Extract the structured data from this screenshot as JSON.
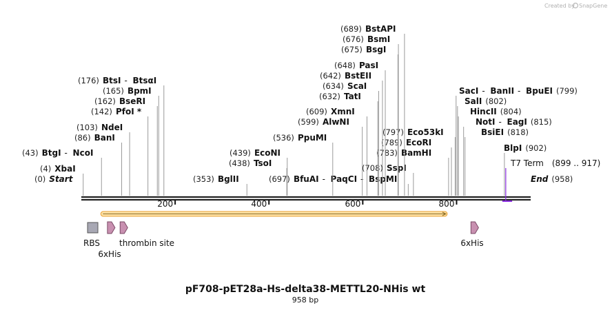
{
  "credit": {
    "prefix": "Created by",
    "brand": "SnapGene"
  },
  "title": "pF708-pET28a-Hs-delta38-METTL20-NHis wt",
  "subtitle": "958 bp",
  "map": {
    "length": 958,
    "ticks": [
      "200",
      "400",
      "600",
      "800"
    ]
  },
  "colors": {
    "backbone": "#222222",
    "orf_fill": "#ffe3a8",
    "orf_stroke": "#e8a030",
    "orf_arrow": "#8a6a20",
    "terminator": "#8a2be2",
    "tag_fill": "#c890b0",
    "rbs_fill": "#a8a8b4"
  },
  "sites": [
    {
      "pos": "(0)",
      "name": "Start",
      "style": "italic",
      "bp": 0
    },
    {
      "pos": "(4)",
      "name": "XbaI",
      "bp": 4
    },
    {
      "pos": "(43)",
      "names": [
        "BtgI",
        "NcoI"
      ],
      "bp": 43
    },
    {
      "pos": "(86)",
      "name": "BanI",
      "bp": 86
    },
    {
      "pos": "(103)",
      "name": "NdeI",
      "bp": 103
    },
    {
      "pos": "(142)",
      "name": "PfoI *",
      "bp": 142
    },
    {
      "pos": "(162)",
      "name": "BseRI",
      "bp": 162
    },
    {
      "pos": "(165)",
      "name": "BpmI",
      "bp": 165
    },
    {
      "pos": "(176)",
      "names": [
        "BtsI",
        "BtsαI"
      ],
      "bp": 176
    },
    {
      "pos": "(353)",
      "name": "BglII",
      "bp": 353
    },
    {
      "pos": "(438)",
      "name": "TsoI",
      "bp": 438
    },
    {
      "pos": "(439)",
      "name": "EcoNI",
      "bp": 439
    },
    {
      "pos": "(536)",
      "name": "PpuMI",
      "bp": 536
    },
    {
      "pos": "(599)",
      "name": "AlwNI",
      "bp": 599
    },
    {
      "pos": "(609)",
      "name": "XmnI",
      "bp": 609
    },
    {
      "pos": "(632)",
      "name": "TatI",
      "bp": 632
    },
    {
      "pos": "(634)",
      "name": "ScaI",
      "bp": 634
    },
    {
      "pos": "(642)",
      "name": "BstEII",
      "bp": 642
    },
    {
      "pos": "(648)",
      "name": "PasI",
      "bp": 648
    },
    {
      "pos": "(675)",
      "name": "BsgI",
      "bp": 675
    },
    {
      "pos": "(676)",
      "name": "BsmI",
      "bp": 676
    },
    {
      "pos": "(689)",
      "name": "BstAPI",
      "bp": 689
    },
    {
      "pos": "(697)",
      "names": [
        "BfuAI",
        "PaqCI",
        "BspMI"
      ],
      "bp": 697
    },
    {
      "pos": "(708)",
      "name": "SspI",
      "bp": 708
    },
    {
      "pos": "(783)",
      "name": "BamHI",
      "bp": 783
    },
    {
      "pos": "(789)",
      "name": "EcoRI",
      "bp": 789
    },
    {
      "pos": "(797)",
      "name": "Eco53kI",
      "bp": 797
    },
    {
      "names": [
        "SacI",
        "BanII",
        "BpuEI"
      ],
      "pos": "(799)",
      "bp": 799
    },
    {
      "name": "SalI",
      "pos": "(802)",
      "bp": 802
    },
    {
      "name": "HincII",
      "pos": "(804)",
      "bp": 804
    },
    {
      "names": [
        "NotI",
        "EagI"
      ],
      "pos": "(815)",
      "bp": 815
    },
    {
      "name": "BsiEI",
      "pos": "(818)",
      "bp": 818
    },
    {
      "name": "BlpI",
      "pos": "(902)",
      "bp": 902
    },
    {
      "name": "End",
      "pos": "(958)",
      "style": "italic",
      "bp": 958
    }
  ],
  "terminator": {
    "name": "T7 Term",
    "range": "(899 .. 917)",
    "start": 899,
    "end": 917
  },
  "features": [
    {
      "type": "rbs",
      "label": "RBS",
      "bp": 25
    },
    {
      "type": "tag",
      "label": "6xHis",
      "bp": 63
    },
    {
      "type": "tag",
      "label": "thrombin site",
      "bp": 90
    },
    {
      "type": "tag",
      "label": "6xHis",
      "bp": 838
    }
  ],
  "orf": {
    "start": 43,
    "end": 783,
    "direction": "forward"
  }
}
